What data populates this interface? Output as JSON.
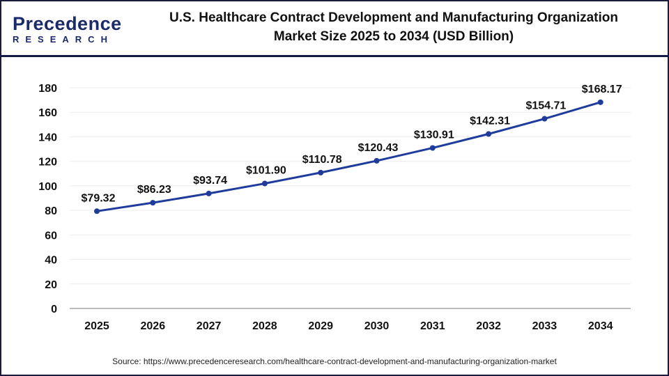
{
  "logo": {
    "line1": "Precedence",
    "line2": "RESEARCH"
  },
  "title_line1": "U.S. Healthcare Contract Development and Manufacturing Organization",
  "title_line2": "Market Size 2025 to 2034 (USD Billion)",
  "source": "Source: https://www.precedenceresearch.com/healthcare-contract-development-and-manufacturing-organization-market",
  "colors": {
    "line": "#1f3c9c",
    "border": "#141a46"
  },
  "chart_data": {
    "type": "line",
    "categories": [
      "2025",
      "2026",
      "2027",
      "2028",
      "2029",
      "2030",
      "2031",
      "2032",
      "2033",
      "2034"
    ],
    "values": [
      79.32,
      86.23,
      93.74,
      101.9,
      110.78,
      120.43,
      130.91,
      142.31,
      154.71,
      168.17
    ],
    "data_labels": [
      "$79.32",
      "$86.23",
      "$93.74",
      "$101.90",
      "$110.78",
      "$120.43",
      "$130.91",
      "$142.31",
      "$154.71",
      "$168.17"
    ],
    "yticks": [
      "0",
      "20",
      "40",
      "60",
      "80",
      "100",
      "120",
      "140",
      "160",
      "180"
    ],
    "ylim": [
      0,
      180
    ],
    "grid": true,
    "legend": "none"
  }
}
